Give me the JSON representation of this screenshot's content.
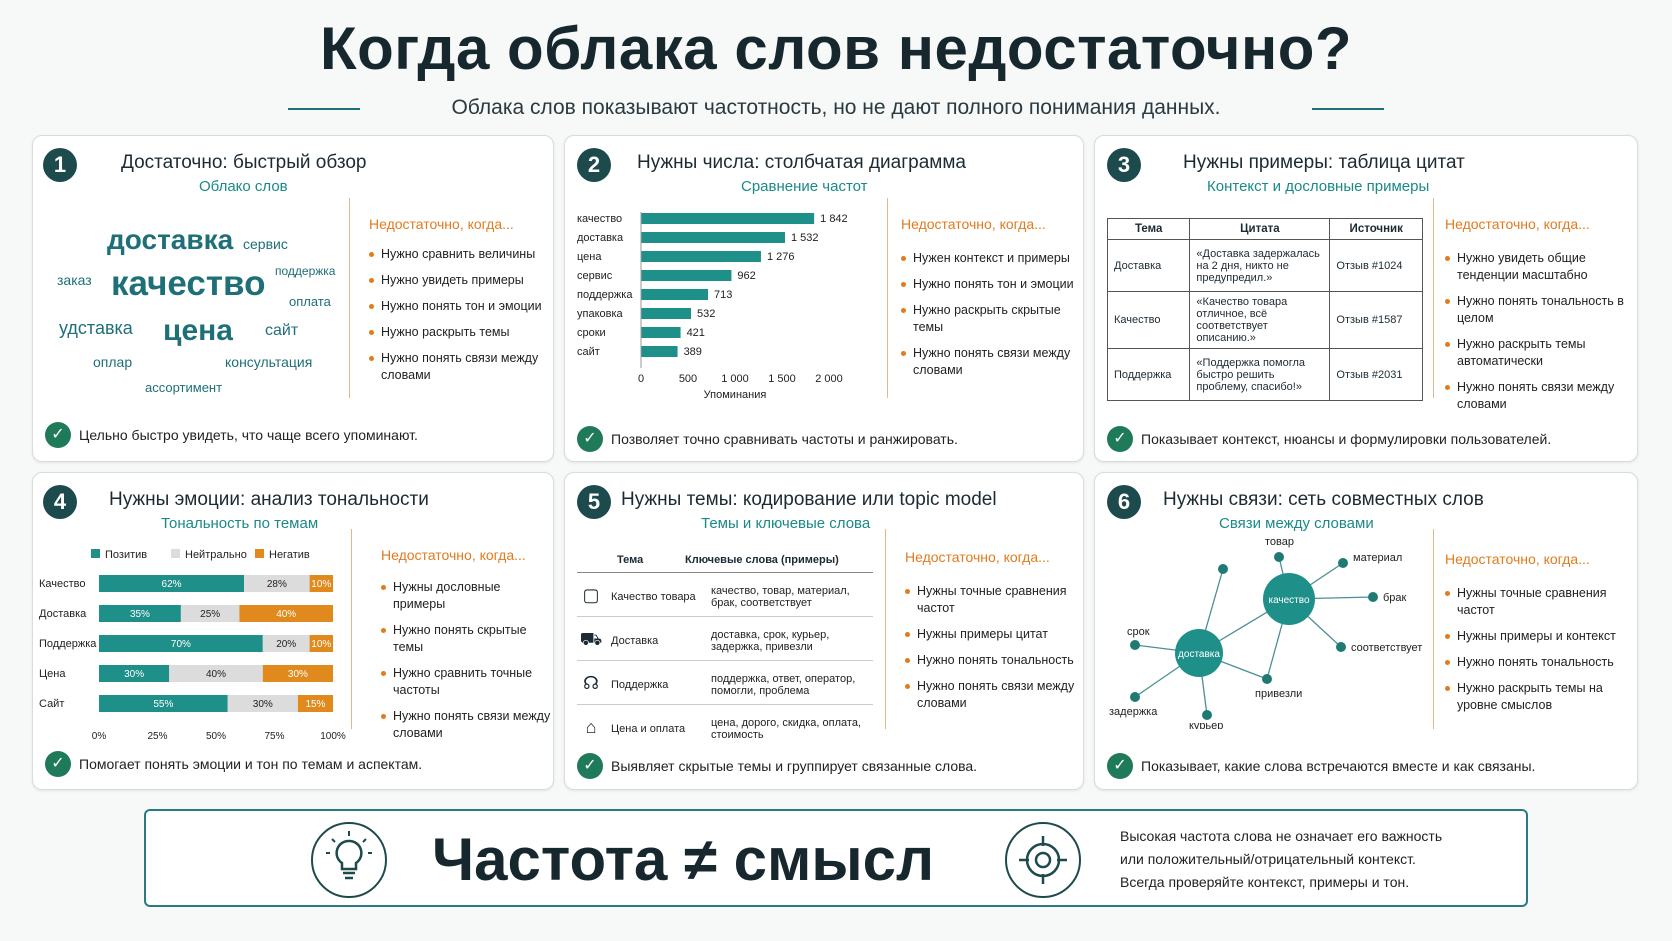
{
  "header": {
    "title": "Когда облака слов недостаточно?",
    "subtitle": "Облака слов показывают частотность, но не дают полного понимания данных."
  },
  "nd_heading": "Недостаточно, когда...",
  "cards": [
    {
      "num": "1",
      "title": "Достаточно: быстрый обзор",
      "subtitle": "Облако слов",
      "words": [
        "доставка",
        "сервис",
        "поддержка",
        "заказ",
        "качество",
        "оплата",
        "удставка",
        "цена",
        "сайт",
        "оплар",
        "консультация",
        "ассортимент"
      ],
      "nd": [
        "Нужно сравнить величины",
        "Нужно увидеть примеры",
        "Нужно понять тон и эмоции",
        "Нужно раскрыть темы",
        "Нужно понять связи между словами"
      ],
      "foot": "Цельно быстро увидеть, что чаще всего упоминают."
    },
    {
      "num": "2",
      "title": "Нужны числа: столбчатая диаграмма",
      "subtitle": "Сравнение частот",
      "nd": [
        "Нужен контекст и примеры",
        "Нужно понять тон и эмоции",
        "Нужно раскрыть скрытые темы",
        "Нужно понять связи между словами"
      ],
      "foot": "Позволяет точно сравнивать частоты и ранжировать."
    },
    {
      "num": "3",
      "title": "Нужны примеры: таблица цитат",
      "subtitle": "Контекст и дословные примеры",
      "table": {
        "headers": [
          "Тема",
          "Цитата",
          "Источник"
        ],
        "rows": [
          [
            "Доставка",
            "«Доставка задержалась на 2 дня, никто не предупредил.»",
            "Отзыв #1024"
          ],
          [
            "Качество",
            "«Качество товара отличное, всё соответствует описанию.»",
            "Отзыв #1587"
          ],
          [
            "Поддержка",
            "«Поддержка помогла быстро решить проблему, спасибо!»",
            "Отзыв #2031"
          ]
        ]
      },
      "nd": [
        "Нужно увидеть общие тенденции масштабно",
        "Нужно понять тональность в целом",
        "Нужно раскрыть темы автоматически",
        "Нужно понять связи между словами"
      ],
      "foot": "Показывает контекст, нюансы и формулировки пользователей."
    },
    {
      "num": "4",
      "title": "Нужны эмоции: анализ тональности",
      "subtitle": "Тональность по темам",
      "nd": [
        "Нужны дословные примеры",
        "Нужно понять скрытые темы",
        "Нужно сравнить точные частоты",
        "Нужно понять связи между словами"
      ],
      "foot": "Помогает понять эмоции и тон по темам и аспектам."
    },
    {
      "num": "5",
      "title": "Нужны темы: кодирование или topic model",
      "subtitle": "Темы и ключевые слова",
      "topic_headers": [
        "Тема",
        "Ключевые слова (примеры)"
      ],
      "topics": [
        {
          "icon": "box-icon",
          "glyph": "▢",
          "name": "Качество товара",
          "kw": "качество, товар, материал, брак, соответствует"
        },
        {
          "icon": "truck-icon",
          "glyph": "⛟",
          "name": "Доставка",
          "kw": "доставка, срок, курьер, задержка, привезли"
        },
        {
          "icon": "headset-icon",
          "glyph": "☊",
          "name": "Поддержка",
          "kw": "поддержка, ответ, оператор, помогли, проблема"
        },
        {
          "icon": "tag-icon",
          "glyph": "⌂",
          "name": "Цена и оплата",
          "kw": "цена, дорого, скидка, оплата, стоимость"
        }
      ],
      "nd": [
        "Нужны точные сравнения частот",
        "Нужны примеры цитат",
        "Нужно понять тональность",
        "Нужно понять связи между словами"
      ],
      "foot": "Выявляет скрытые темы и группирует связанные слова."
    },
    {
      "num": "6",
      "title": "Нужны связи: сеть совместных слов",
      "subtitle": "Связи между словами",
      "net": {
        "hub1": "доставка",
        "hub2": "качество",
        "labels": [
          "товар",
          "материал",
          "брак",
          "соответствует",
          "привезли",
          "курьер",
          "задержка",
          "срок"
        ]
      },
      "nd": [
        "Нужны точные сравнения частот",
        "Нужны примеры и контекст",
        "Нужно понять тональность",
        "Нужно раскрыть темы на уровне смыслов"
      ],
      "foot": "Показывает, какие слова встречаются вместе и как связаны."
    }
  ],
  "chart_data": [
    {
      "type": "bar",
      "categories": [
        "качество",
        "доставка",
        "цена",
        "сервис",
        "поддержка",
        "упаковка",
        "сроки",
        "сайт"
      ],
      "values": [
        1842,
        1532,
        1276,
        962,
        713,
        532,
        421,
        389
      ],
      "value_labels": [
        "1 842",
        "1 532",
        "1 276",
        "962",
        "713",
        "532",
        "421",
        "389"
      ],
      "xlabel": "Упоминания",
      "xlim": [
        0,
        2000
      ],
      "ticks": [
        "0",
        "500",
        "1 000",
        "1 500",
        "2 000"
      ],
      "color": "#1f8f8a"
    },
    {
      "type": "bar",
      "stacked": true,
      "legend": [
        "Позитив",
        "Нейтрально",
        "Негатив"
      ],
      "colors": [
        "#1f8f8a",
        "#dcdcdc",
        "#e08a1e"
      ],
      "categories": [
        "Качество",
        "Доставка",
        "Поддержка",
        "Цена",
        "Сайт"
      ],
      "series": [
        {
          "name": "Позитив",
          "values": [
            62,
            35,
            70,
            30,
            55
          ]
        },
        {
          "name": "Нейтрально",
          "values": [
            28,
            25,
            20,
            40,
            30
          ]
        },
        {
          "name": "Негатив",
          "values": [
            10,
            40,
            10,
            30,
            15
          ]
        }
      ],
      "ticks": [
        "0%",
        "25%",
        "50%",
        "75%",
        "100%"
      ]
    }
  ],
  "bottom": {
    "main": "Частота ≠ смысл",
    "text": [
      "Высокая частота слова не означает его важность",
      "или положительный/отрицательный контекст.",
      "Всегда проверяйте контекст, примеры и тон."
    ]
  }
}
